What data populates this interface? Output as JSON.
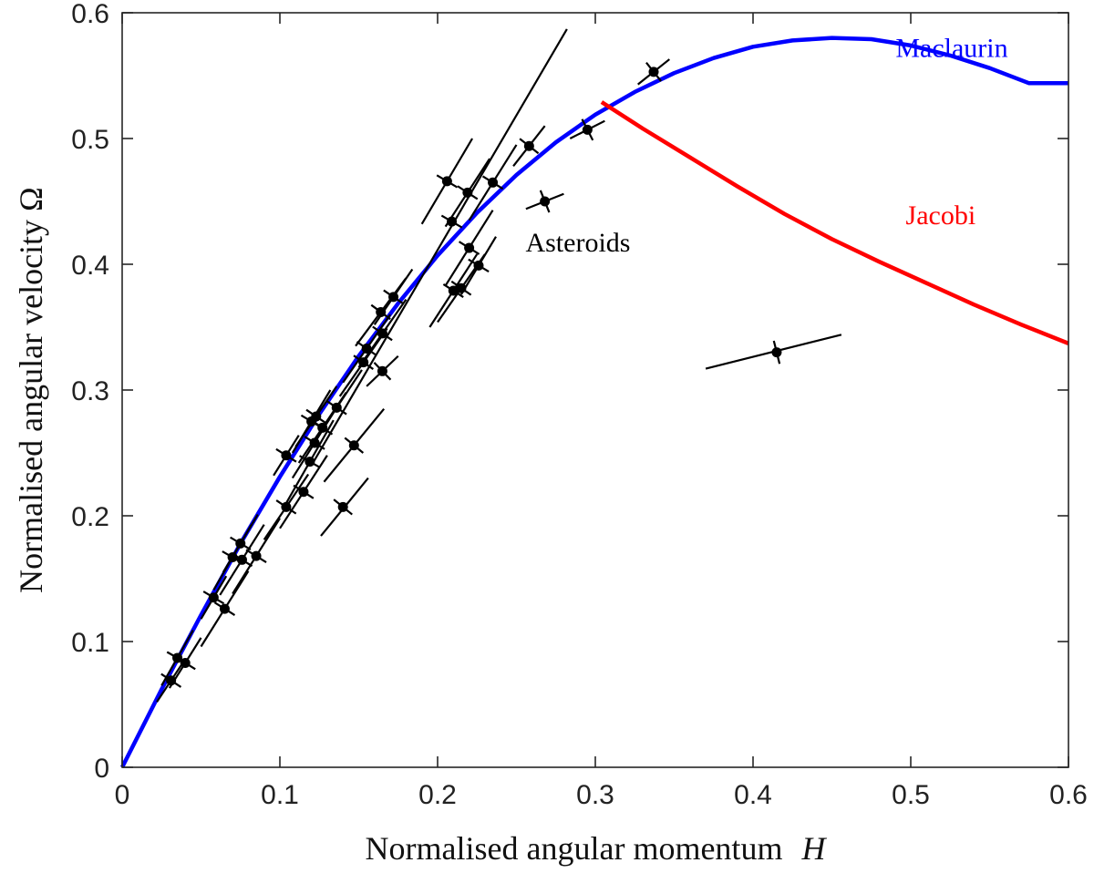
{
  "chart_data": {
    "type": "scatter",
    "title": "",
    "xlabel": "Normalised angular momentum",
    "xlabel_symbol": "H",
    "ylabel": "Normalised angular velocity Ω",
    "xlim": [
      0,
      0.6
    ],
    "ylim": [
      0,
      0.6
    ],
    "xticks": [
      0,
      0.1,
      0.2,
      0.3,
      0.4,
      0.5,
      0.6
    ],
    "yticks": [
      0,
      0.1,
      0.2,
      0.3,
      0.4,
      0.5,
      0.6
    ],
    "xtick_labels": [
      "0",
      "0.1",
      "0.2",
      "0.3",
      "0.4",
      "0.5",
      "0.6"
    ],
    "ytick_labels": [
      "0",
      "0.1",
      "0.2",
      "0.3",
      "0.4",
      "0.5",
      "0.6"
    ],
    "grid": false,
    "colors": {
      "maclaurin": "#0000ff",
      "jacobi": "#ff0000",
      "asteroids": "#000000"
    },
    "series": [
      {
        "name": "Maclaurin",
        "type": "line",
        "x": [
          0,
          0.025,
          0.05,
          0.075,
          0.1,
          0.125,
          0.15,
          0.175,
          0.2,
          0.225,
          0.25,
          0.275,
          0.3,
          0.325,
          0.35,
          0.375,
          0.4,
          0.425,
          0.45,
          0.475,
          0.5,
          0.525,
          0.55,
          0.575,
          0.6
        ],
        "y": [
          0,
          0.062,
          0.121,
          0.178,
          0.231,
          0.281,
          0.327,
          0.369,
          0.407,
          0.441,
          0.471,
          0.497,
          0.519,
          0.537,
          0.552,
          0.564,
          0.573,
          0.578,
          0.58,
          0.579,
          0.574,
          0.566,
          0.556,
          0.544,
          0.544
        ]
      },
      {
        "name": "Jacobi",
        "type": "line",
        "x": [
          0.304,
          0.33,
          0.36,
          0.39,
          0.42,
          0.45,
          0.48,
          0.51,
          0.54,
          0.57,
          0.6
        ],
        "y": [
          0.529,
          0.508,
          0.485,
          0.462,
          0.44,
          0.42,
          0.402,
          0.385,
          0.368,
          0.352,
          0.337
        ]
      },
      {
        "name": "Asteroids",
        "type": "scatter",
        "points": [
          {
            "x": 0.031,
            "y": 0.069,
            "exl": 0.022,
            "eyl": 0.052,
            "exh": 0.04,
            "eyh": 0.086
          },
          {
            "x": 0.035,
            "y": 0.087,
            "exl": 0.025,
            "eyl": 0.065,
            "exh": 0.045,
            "eyh": 0.109
          },
          {
            "x": 0.04,
            "y": 0.083,
            "exl": 0.03,
            "eyl": 0.063,
            "exh": 0.05,
            "eyh": 0.103
          },
          {
            "x": 0.058,
            "y": 0.135,
            "exl": 0.05,
            "eyl": 0.118,
            "exh": 0.066,
            "eyh": 0.152
          },
          {
            "x": 0.065,
            "y": 0.126,
            "exl": 0.05,
            "eyl": 0.096,
            "exh": 0.08,
            "eyh": 0.156
          },
          {
            "x": 0.07,
            "y": 0.167,
            "exl": 0.058,
            "eyl": 0.141,
            "exh": 0.082,
            "eyh": 0.193
          },
          {
            "x": 0.075,
            "y": 0.178,
            "exl": 0.064,
            "eyl": 0.155,
            "exh": 0.086,
            "eyh": 0.201
          },
          {
            "x": 0.076,
            "y": 0.165,
            "exl": 0.062,
            "eyl": 0.137,
            "exh": 0.09,
            "eyh": 0.193
          },
          {
            "x": 0.085,
            "y": 0.168,
            "exl": 0.07,
            "eyl": 0.138,
            "exh": 0.1,
            "eyh": 0.198
          },
          {
            "x": 0.104,
            "y": 0.207,
            "exl": 0.09,
            "eyl": 0.181,
            "exh": 0.118,
            "eyh": 0.233
          },
          {
            "x": 0.104,
            "y": 0.248,
            "exl": 0.096,
            "eyl": 0.232,
            "exh": 0.112,
            "eyh": 0.264
          },
          {
            "x": 0.115,
            "y": 0.219,
            "exl": 0.1,
            "eyl": 0.19,
            "exh": 0.13,
            "eyh": 0.248
          },
          {
            "x": 0.119,
            "y": 0.243,
            "exl": 0.104,
            "eyl": 0.21,
            "exh": 0.134,
            "eyh": 0.276
          },
          {
            "x": 0.12,
            "y": 0.275,
            "exl": 0.108,
            "eyl": 0.25,
            "exh": 0.132,
            "eyh": 0.3
          },
          {
            "x": 0.122,
            "y": 0.258,
            "exl": 0.108,
            "eyl": 0.23,
            "exh": 0.136,
            "eyh": 0.286
          },
          {
            "x": 0.123,
            "y": 0.279,
            "exl": 0.11,
            "eyl": 0.255,
            "exh": 0.136,
            "eyh": 0.303
          },
          {
            "x": 0.127,
            "y": 0.27,
            "exl": 0.112,
            "eyl": 0.242,
            "exh": 0.142,
            "eyh": 0.298
          },
          {
            "x": 0.136,
            "y": 0.286,
            "exl": 0.12,
            "eyl": 0.256,
            "exh": 0.152,
            "eyh": 0.316
          },
          {
            "x": 0.14,
            "y": 0.207,
            "exl": 0.126,
            "eyl": 0.184,
            "exh": 0.156,
            "eyh": 0.23
          },
          {
            "x": 0.147,
            "y": 0.256,
            "exl": 0.128,
            "eyl": 0.227,
            "exh": 0.166,
            "eyh": 0.285
          },
          {
            "x": 0.153,
            "y": 0.322,
            "exl": 0.138,
            "eyl": 0.295,
            "exh": 0.168,
            "eyh": 0.349
          },
          {
            "x": 0.155,
            "y": 0.333,
            "exl": 0.14,
            "eyl": 0.306,
            "exh": 0.17,
            "eyh": 0.36
          },
          {
            "x": 0.164,
            "y": 0.362,
            "exl": 0.148,
            "eyl": 0.335,
            "exh": 0.18,
            "eyh": 0.389
          },
          {
            "x": 0.165,
            "y": 0.315,
            "exl": 0.155,
            "eyl": 0.303,
            "exh": 0.175,
            "eyh": 0.327
          },
          {
            "x": 0.165,
            "y": 0.345,
            "exl": 0.15,
            "eyl": 0.318,
            "exh": 0.18,
            "eyh": 0.372
          },
          {
            "x": 0.172,
            "y": 0.374,
            "exl": 0.16,
            "eyl": 0.352,
            "exh": 0.184,
            "eyh": 0.396
          },
          {
            "x": 0.206,
            "y": 0.466,
            "exl": 0.19,
            "eyl": 0.432,
            "exh": 0.222,
            "eyh": 0.5
          },
          {
            "x": 0.209,
            "y": 0.434,
            "exl": 0.12,
            "eyl": 0.24,
            "exh": 0.282,
            "eyh": 0.587
          },
          {
            "x": 0.21,
            "y": 0.379,
            "exl": 0.195,
            "eyl": 0.35,
            "exh": 0.225,
            "eyh": 0.408
          },
          {
            "x": 0.215,
            "y": 0.381,
            "exl": 0.2,
            "eyl": 0.354,
            "exh": 0.23,
            "eyh": 0.408
          },
          {
            "x": 0.219,
            "y": 0.457,
            "exl": 0.205,
            "eyl": 0.43,
            "exh": 0.233,
            "eyh": 0.484
          },
          {
            "x": 0.22,
            "y": 0.413,
            "exl": 0.205,
            "eyl": 0.383,
            "exh": 0.235,
            "eyh": 0.443
          },
          {
            "x": 0.226,
            "y": 0.399,
            "exl": 0.215,
            "eyl": 0.376,
            "exh": 0.237,
            "eyh": 0.422
          },
          {
            "x": 0.235,
            "y": 0.465,
            "exl": 0.22,
            "eyl": 0.435,
            "exh": 0.25,
            "eyh": 0.495
          },
          {
            "x": 0.258,
            "y": 0.494,
            "exl": 0.248,
            "eyl": 0.478,
            "exh": 0.268,
            "eyh": 0.51
          },
          {
            "x": 0.268,
            "y": 0.45,
            "exl": 0.256,
            "eyl": 0.444,
            "exh": 0.28,
            "eyh": 0.456
          },
          {
            "x": 0.295,
            "y": 0.507,
            "exl": 0.284,
            "eyl": 0.5,
            "exh": 0.306,
            "eyh": 0.514
          },
          {
            "x": 0.337,
            "y": 0.553,
            "exl": 0.327,
            "eyl": 0.543,
            "exh": 0.347,
            "eyh": 0.563
          },
          {
            "x": 0.415,
            "y": 0.33,
            "exl": 0.37,
            "eyl": 0.317,
            "exh": 0.456,
            "eyh": 0.344
          }
        ]
      }
    ],
    "annotations": [
      {
        "text": "Maclaurin",
        "x": 0.526,
        "y": 0.565,
        "color": "#0000ff"
      },
      {
        "text": "Jacobi",
        "x": 0.519,
        "y": 0.432,
        "color": "#ff0000"
      },
      {
        "text": "Asteroids",
        "x": 0.289,
        "y": 0.41,
        "color": "#000000"
      }
    ]
  }
}
